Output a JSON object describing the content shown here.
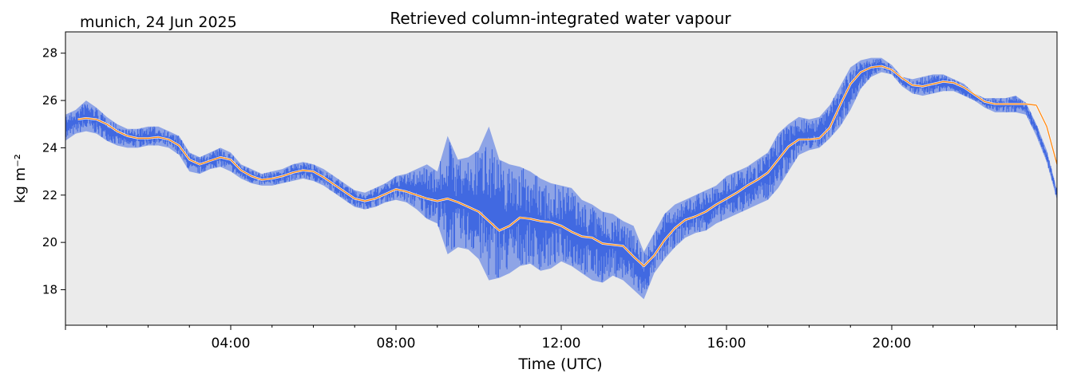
{
  "header": {
    "location_date": "munich, 24 Jun 2025"
  },
  "colors": {
    "plot_background": "#ebebeb",
    "raw_series": "#4169e1",
    "smoothed_series": "#ff8c1a",
    "axis": "#000000"
  },
  "chart_data": {
    "type": "line",
    "title": "Retrieved column-integrated water vapour",
    "xlabel": "Time (UTC)",
    "ylabel": "kg m⁻²",
    "x_unit": "hours UTC",
    "xlim": [
      0,
      24
    ],
    "ylim": [
      16.5,
      28.9
    ],
    "grid": false,
    "x_ticks": [
      {
        "value": 4,
        "label": "04:00"
      },
      {
        "value": 8,
        "label": "08:00"
      },
      {
        "value": 12,
        "label": "12:00"
      },
      {
        "value": 16,
        "label": "16:00"
      },
      {
        "value": 20,
        "label": "20:00"
      }
    ],
    "y_ticks": [
      {
        "value": 18,
        "label": "18"
      },
      {
        "value": 20,
        "label": "20"
      },
      {
        "value": 22,
        "label": "22"
      },
      {
        "value": 24,
        "label": "24"
      },
      {
        "value": 26,
        "label": "26"
      },
      {
        "value": 28,
        "label": "28"
      }
    ],
    "series": [
      {
        "role": "raw",
        "style": "scatter-dense",
        "x": [
          0.0,
          0.25,
          0.5,
          0.75,
          1.0,
          1.25,
          1.5,
          1.75,
          2.0,
          2.25,
          2.5,
          2.75,
          3.0,
          3.25,
          3.5,
          3.75,
          4.0,
          4.25,
          4.5,
          4.75,
          5.0,
          5.25,
          5.5,
          5.75,
          6.0,
          6.25,
          6.5,
          6.75,
          7.0,
          7.25,
          7.5,
          7.75,
          8.0,
          8.25,
          8.5,
          8.75,
          9.0,
          9.25,
          9.5,
          9.75,
          10.0,
          10.25,
          10.5,
          10.75,
          11.0,
          11.25,
          11.5,
          11.75,
          12.0,
          12.25,
          12.5,
          12.75,
          13.0,
          13.25,
          13.5,
          13.75,
          14.0,
          14.25,
          14.5,
          14.75,
          15.0,
          15.25,
          15.5,
          15.75,
          16.0,
          16.25,
          16.5,
          16.75,
          17.0,
          17.25,
          17.5,
          17.75,
          18.0,
          18.25,
          18.5,
          18.75,
          19.0,
          19.25,
          19.5,
          19.75,
          20.0,
          20.25,
          20.5,
          20.75,
          21.0,
          21.25,
          21.5,
          21.75,
          22.0,
          22.25,
          22.5,
          22.75,
          23.0,
          23.25,
          23.5,
          23.75,
          24.0
        ],
        "y_low": [
          24.3,
          24.6,
          24.7,
          24.6,
          24.3,
          24.1,
          24.0,
          24.0,
          24.1,
          24.1,
          24.0,
          23.7,
          23.0,
          22.9,
          23.1,
          23.2,
          23.0,
          22.7,
          22.5,
          22.4,
          22.4,
          22.5,
          22.6,
          22.7,
          22.6,
          22.4,
          22.1,
          21.8,
          21.5,
          21.4,
          21.5,
          21.7,
          21.8,
          21.7,
          21.4,
          21.0,
          20.8,
          19.5,
          19.8,
          19.7,
          19.3,
          18.4,
          18.5,
          18.7,
          19.0,
          19.1,
          18.8,
          18.9,
          19.2,
          19.0,
          18.7,
          18.4,
          18.3,
          18.6,
          18.4,
          18.0,
          17.6,
          18.7,
          19.3,
          19.8,
          20.2,
          20.4,
          20.5,
          20.8,
          21.0,
          21.2,
          21.4,
          21.6,
          21.8,
          22.3,
          23.0,
          23.7,
          23.9,
          24.0,
          24.4,
          24.9,
          25.6,
          26.5,
          27.0,
          27.2,
          27.1,
          26.6,
          26.3,
          26.2,
          26.3,
          26.4,
          26.4,
          26.2,
          26.0,
          25.7,
          25.5,
          25.5,
          25.5,
          25.4,
          24.5,
          23.4,
          21.8
        ],
        "y_high": [
          25.4,
          25.6,
          26.0,
          25.7,
          25.3,
          25.0,
          24.8,
          24.8,
          24.9,
          24.9,
          24.7,
          24.5,
          23.8,
          23.6,
          23.8,
          24.0,
          23.8,
          23.3,
          23.1,
          22.9,
          23.0,
          23.1,
          23.3,
          23.4,
          23.3,
          23.1,
          22.8,
          22.5,
          22.2,
          22.1,
          22.3,
          22.5,
          22.8,
          22.9,
          23.1,
          23.3,
          23.0,
          24.5,
          23.5,
          23.6,
          23.9,
          24.9,
          23.5,
          23.3,
          23.2,
          23.0,
          22.7,
          22.5,
          22.4,
          22.3,
          21.8,
          21.6,
          21.3,
          21.2,
          20.9,
          20.7,
          19.6,
          20.4,
          21.2,
          21.6,
          21.8,
          22.0,
          22.2,
          22.4,
          22.8,
          23.0,
          23.2,
          23.5,
          23.8,
          24.6,
          25.0,
          25.3,
          25.2,
          25.3,
          25.8,
          26.6,
          27.4,
          27.7,
          27.8,
          27.8,
          27.5,
          27.0,
          26.9,
          27.0,
          27.1,
          27.1,
          26.9,
          26.7,
          26.3,
          26.1,
          26.1,
          26.1,
          26.2,
          25.9,
          25.0,
          23.9,
          22.2
        ]
      },
      {
        "role": "smoothed",
        "style": "line",
        "x": [
          0.3,
          0.5,
          0.75,
          1.0,
          1.25,
          1.5,
          1.75,
          2.0,
          2.25,
          2.5,
          2.75,
          3.0,
          3.25,
          3.5,
          3.75,
          4.0,
          4.25,
          4.5,
          4.75,
          5.0,
          5.25,
          5.5,
          5.75,
          6.0,
          6.25,
          6.5,
          6.75,
          7.0,
          7.25,
          7.5,
          7.75,
          8.0,
          8.25,
          8.5,
          8.75,
          9.0,
          9.25,
          9.5,
          9.75,
          10.0,
          10.25,
          10.5,
          10.75,
          11.0,
          11.25,
          11.5,
          11.75,
          12.0,
          12.25,
          12.5,
          12.75,
          13.0,
          13.25,
          13.5,
          13.75,
          14.0,
          14.25,
          14.5,
          14.75,
          15.0,
          15.25,
          15.5,
          15.75,
          16.0,
          16.25,
          16.5,
          16.75,
          17.0,
          17.25,
          17.5,
          17.75,
          18.0,
          18.25,
          18.5,
          18.75,
          19.0,
          19.25,
          19.5,
          19.75,
          20.0,
          20.25,
          20.5,
          20.75,
          21.0,
          21.25,
          21.5,
          21.75,
          22.0,
          22.25,
          22.5,
          22.75,
          23.0,
          23.25,
          23.5
        ],
        "y": [
          25.2,
          25.25,
          25.2,
          25.0,
          24.7,
          24.5,
          24.4,
          24.4,
          24.45,
          24.35,
          24.1,
          23.5,
          23.3,
          23.45,
          23.6,
          23.5,
          23.05,
          22.8,
          22.65,
          22.7,
          22.8,
          22.95,
          23.05,
          23.0,
          22.75,
          22.45,
          22.15,
          21.85,
          21.75,
          21.85,
          22.05,
          22.25,
          22.15,
          22.0,
          21.85,
          21.75,
          21.85,
          21.7,
          21.5,
          21.3,
          20.9,
          20.5,
          20.7,
          21.05,
          21.0,
          20.9,
          20.85,
          20.7,
          20.45,
          20.25,
          20.2,
          19.95,
          19.9,
          19.85,
          19.4,
          19.0,
          19.45,
          20.1,
          20.6,
          20.95,
          21.1,
          21.3,
          21.6,
          21.85,
          22.1,
          22.4,
          22.65,
          22.95,
          23.5,
          24.05,
          24.35,
          24.35,
          24.4,
          24.85,
          25.8,
          26.7,
          27.2,
          27.4,
          27.45,
          27.3,
          26.95,
          26.65,
          26.6,
          26.7,
          26.8,
          26.75,
          26.55,
          26.25,
          25.95,
          25.85,
          25.85,
          25.85,
          25.85,
          25.8
        ]
      },
      {
        "role": "smoothed-tail",
        "style": "line",
        "x": [
          23.5,
          23.75,
          24.0
        ],
        "y": [
          25.8,
          24.9,
          23.3
        ]
      }
    ]
  }
}
